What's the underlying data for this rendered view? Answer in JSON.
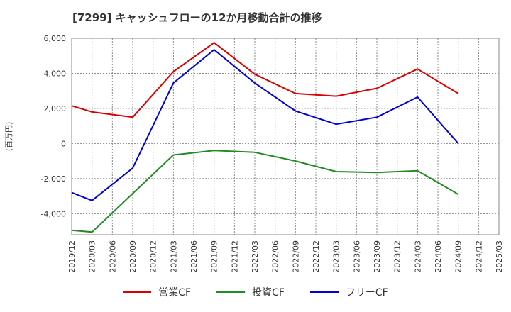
{
  "chart_data": {
    "type": "line",
    "title": "[7299]  キャッシュフローの12か月移動合計の推移",
    "ylabel": "(百万円)",
    "xlabel": "",
    "ylim": [
      -5200,
      6000
    ],
    "yticks": [
      6000,
      4000,
      2000,
      0,
      -2000,
      -4000
    ],
    "ytick_labels": [
      "6,000",
      "4,000",
      "2,000",
      "0",
      "-2,000",
      "-4,000"
    ],
    "categories": [
      "2019/12",
      "2020/03",
      "2020/06",
      "2020/09",
      "2020/12",
      "2021/03",
      "2021/06",
      "2021/09",
      "2021/12",
      "2022/03",
      "2022/06",
      "2022/09",
      "2022/12",
      "2023/03",
      "2023/06",
      "2023/09",
      "2023/12",
      "2024/03",
      "2024/06",
      "2024/09",
      "2024/12",
      "2025/03"
    ],
    "grid": true,
    "legend_position": "bottom",
    "series": [
      {
        "name": "営業CF",
        "color": "#dd0000",
        "points": [
          [
            0,
            2150
          ],
          [
            1,
            1800
          ],
          [
            3,
            1500
          ],
          [
            5,
            4100
          ],
          [
            7,
            5750
          ],
          [
            9,
            3950
          ],
          [
            11,
            2850
          ],
          [
            13,
            2700
          ],
          [
            15,
            3150
          ],
          [
            17,
            4250
          ],
          [
            19,
            2850
          ]
        ]
      },
      {
        "name": "投資CF",
        "color": "#228b22",
        "points": [
          [
            0,
            -4950
          ],
          [
            1,
            -5050
          ],
          [
            3,
            -2850
          ],
          [
            5,
            -650
          ],
          [
            7,
            -400
          ],
          [
            9,
            -500
          ],
          [
            11,
            -1000
          ],
          [
            13,
            -1600
          ],
          [
            15,
            -1650
          ],
          [
            17,
            -1550
          ],
          [
            19,
            -2900
          ]
        ]
      },
      {
        "name": "フリーCF",
        "color": "#0000dd",
        "points": [
          [
            0,
            -2800
          ],
          [
            1,
            -3250
          ],
          [
            3,
            -1400
          ],
          [
            5,
            3450
          ],
          [
            7,
            5350
          ],
          [
            9,
            3450
          ],
          [
            11,
            1850
          ],
          [
            13,
            1100
          ],
          [
            15,
            1500
          ],
          [
            17,
            2650
          ],
          [
            19,
            0
          ]
        ]
      }
    ]
  }
}
